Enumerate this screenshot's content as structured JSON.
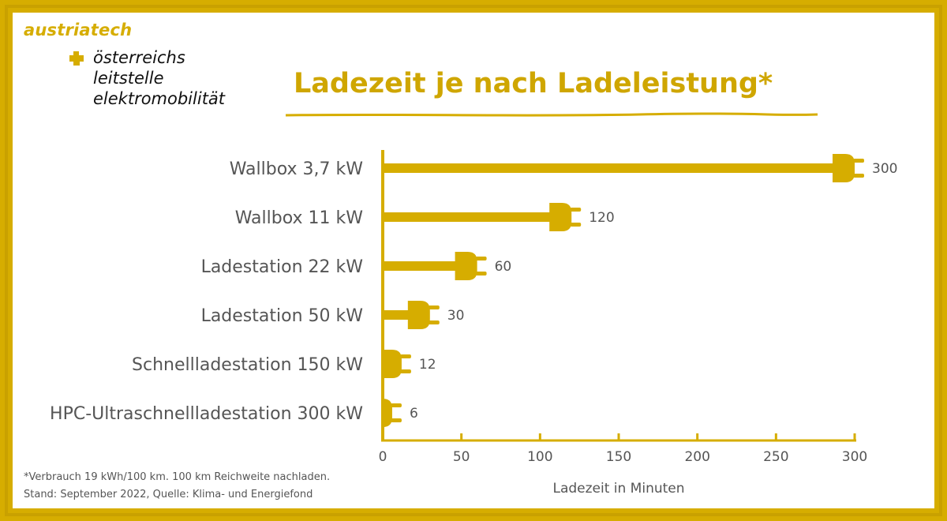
{
  "logo": {
    "brand_part1": "austria",
    "brand_part2": "tech",
    "line1": "österreichs",
    "line2": "leitstelle",
    "line3": "elektromobilität"
  },
  "colors": {
    "accent": "#d6ad00",
    "title": "#cfa600",
    "text": "#555555"
  },
  "footnote": {
    "line1": "*Verbrauch 19 kWh/100 km. 100 km Reichweite nachladen.",
    "line2": "Stand: September 2022, Quelle: Klima- und Energiefond"
  },
  "chart_data": {
    "type": "bar",
    "orientation": "horizontal",
    "title": "Ladezeit je nach Ladeleistung*",
    "xlabel": "Ladezeit in Minuten",
    "ylabel": "",
    "categories": [
      "Wallbox 3,7 kW",
      "Wallbox 11 kW",
      "Ladestation 22 kW",
      "Ladestation 50 kW",
      "Schnellladestation 150 kW",
      "HPC-Ultraschnellladestation 300 kW"
    ],
    "values": [
      300,
      120,
      60,
      30,
      12,
      6
    ],
    "xlim": [
      0,
      300
    ],
    "xticks": [
      0,
      50,
      100,
      150,
      200,
      250,
      300
    ],
    "grid": false,
    "bar_end_marker": "plug-icon"
  }
}
